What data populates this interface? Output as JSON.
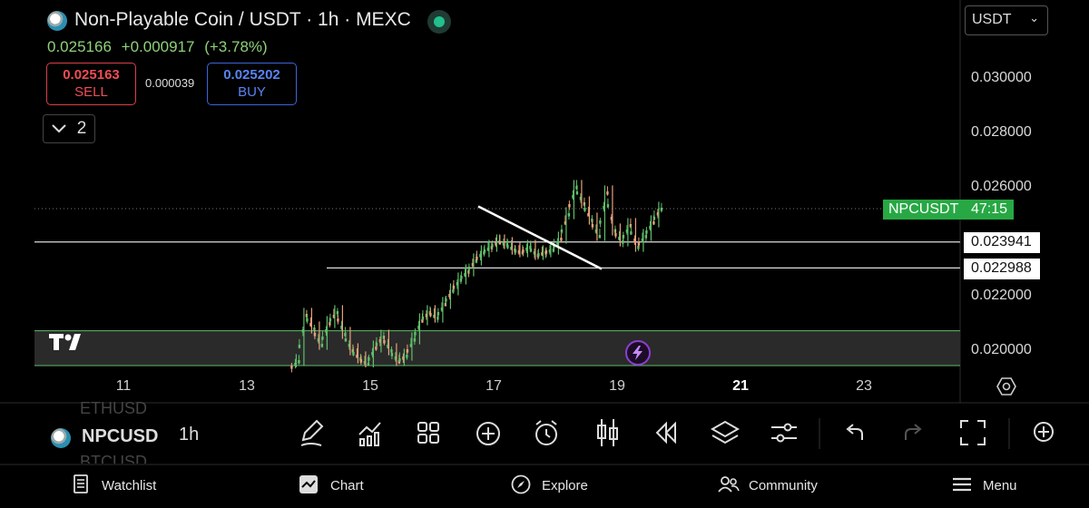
{
  "header": {
    "title": "Non-Playable Coin / USDT · 1h · MEXC",
    "last_price": "0.025166",
    "change_abs": "+0.000917",
    "change_pct": "(+3.78%)"
  },
  "order": {
    "sell_price": "0.025163",
    "sell_label": "SELL",
    "spread": "0.000039",
    "buy_price": "0.025202",
    "buy_label": "BUY"
  },
  "indicators_toggle": {
    "count": "2"
  },
  "currency_select": {
    "value": "USDT"
  },
  "price_axis": [
    "0.030000",
    "0.028000",
    "0.026000",
    "0.022000",
    "0.020000"
  ],
  "level_labels": [
    "0.023941",
    "0.022988"
  ],
  "symbol_tag": {
    "symbol": "NPCUSDT",
    "countdown": "47:15"
  },
  "time_axis": [
    "11",
    "13",
    "15",
    "17",
    "19",
    "21",
    "23"
  ],
  "time_axis_highlight": "21",
  "symbol_bar": {
    "symbol": "NPCUSD",
    "ghost_above": "ETHUSD",
    "ghost_below": "BTCUSD",
    "timeframe": "1h"
  },
  "toolbar_icons": [
    "draw-icon",
    "indicators-icon",
    "layouts-icon",
    "add-icon",
    "alert-icon",
    "chart-type-icon",
    "replay-icon",
    "layers-icon",
    "settings-icon",
    "undo-icon",
    "redo-icon",
    "fullscreen-icon",
    "more-icon"
  ],
  "nav": [
    {
      "label": "Watchlist",
      "icon": "watchlist-icon"
    },
    {
      "label": "Chart",
      "icon": "chart-icon"
    },
    {
      "label": "Explore",
      "icon": "compass-icon"
    },
    {
      "label": "Community",
      "icon": "community-icon"
    },
    {
      "label": "Menu",
      "icon": "menu-icon"
    }
  ],
  "colors": {
    "up": "#5fbf6a",
    "down": "#e8a07a",
    "zone": "#5fbf6a",
    "tag": "#27a844",
    "sell": "#ef4d55",
    "buy": "#5a84f2"
  },
  "chart_data": {
    "type": "candlestick",
    "symbol": "NPCUSDT",
    "interval": "1h",
    "x_range": [
      "10",
      "24"
    ],
    "y_range": [
      0.0193,
      0.0317
    ],
    "closes_start_day": 13.8,
    "closes_hours_per_point": 3,
    "closes": [
      0.0196,
      0.0213,
      0.0208,
      0.0202,
      0.021,
      0.0214,
      0.0206,
      0.02,
      0.0197,
      0.0195,
      0.0201,
      0.0205,
      0.02,
      0.0196,
      0.0198,
      0.0204,
      0.0211,
      0.0214,
      0.0212,
      0.0217,
      0.0222,
      0.0226,
      0.0229,
      0.0233,
      0.0236,
      0.0238,
      0.024,
      0.0239,
      0.0237,
      0.0236,
      0.0238,
      0.0235,
      0.0236,
      0.0237,
      0.0241,
      0.025,
      0.026,
      0.0254,
      0.0248,
      0.0242,
      0.0258,
      0.0244,
      0.024,
      0.0246,
      0.0238,
      0.0242,
      0.0247,
      0.0252
    ],
    "horizontal_levels": [
      0.023941,
      0.022988
    ],
    "current_price_line": 0.025166,
    "trendline": {
      "from": [
        16.75,
        0.02525
      ],
      "to": [
        18.75,
        0.02295
      ]
    },
    "demand_zone": [
      0.0194,
      0.02068
    ]
  }
}
